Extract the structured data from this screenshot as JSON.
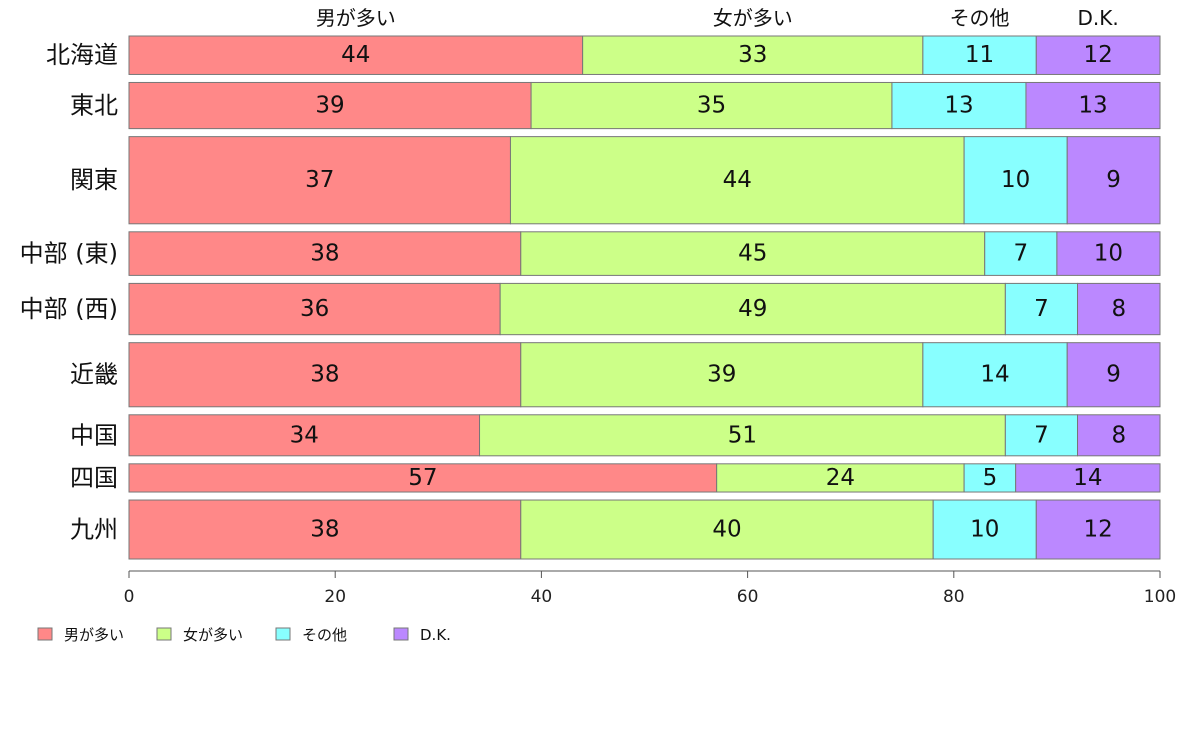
{
  "chart_data": {
    "type": "bar",
    "orientation": "horizontal",
    "stacked": true,
    "variable_width": true,
    "categories": [
      "北海道",
      "東北",
      "関東",
      "中部 (東)",
      "中部 (西)",
      "近畿",
      "中国",
      "四国",
      "九州"
    ],
    "relative_widths": [
      0.75,
      0.9,
      1.7,
      0.85,
      1.0,
      1.25,
      0.8,
      0.55,
      1.15
    ],
    "series": [
      {
        "name": "男が多い",
        "color": "#ff8888",
        "values": [
          44,
          39,
          37,
          38,
          36,
          38,
          34,
          57,
          38
        ]
      },
      {
        "name": "女が多い",
        "color": "#ccff88",
        "values": [
          33,
          35,
          44,
          45,
          49,
          39,
          51,
          24,
          40
        ]
      },
      {
        "name": "その他",
        "color": "#88ffff",
        "values": [
          11,
          13,
          10,
          7,
          7,
          14,
          7,
          5,
          10
        ]
      },
      {
        "name": "D.K.",
        "color": "#bb88ff",
        "values": [
          12,
          13,
          9,
          10,
          8,
          9,
          8,
          14,
          12
        ]
      }
    ],
    "column_labels": [
      "男が多い",
      "女が多い",
      "その他",
      "D.K."
    ],
    "xlim": [
      0,
      100
    ],
    "xticks": [
      0,
      20,
      40,
      60,
      80,
      100
    ],
    "legend": {
      "placement": "bottom-left",
      "entries": [
        "男が多い",
        "女が多い",
        "その他",
        "D.K."
      ]
    },
    "grid": false
  }
}
